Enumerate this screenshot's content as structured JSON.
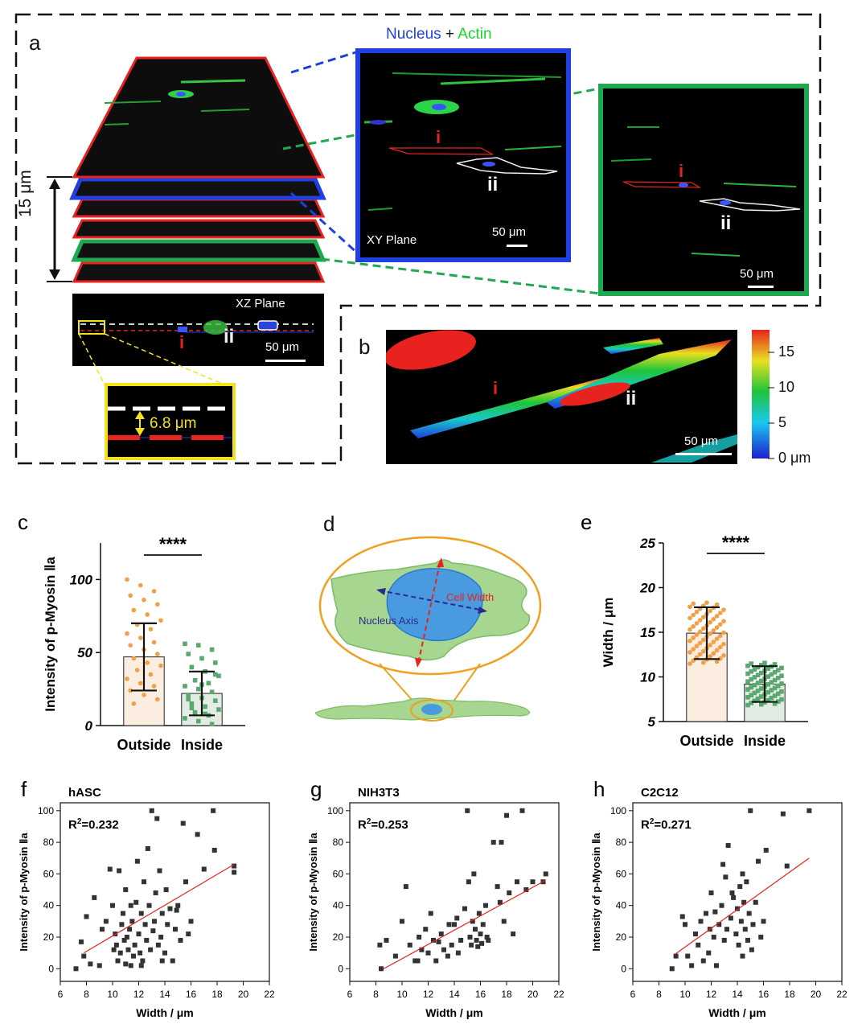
{
  "figure": {
    "panel_a": {
      "letter": "a",
      "title_nucleus": "Nucleus",
      "title_plus": " + ",
      "title_actin": "Actin",
      "stack_height_label": "15 μm",
      "xy_plane_label": "XY Plane",
      "xy_scale": "50 μm",
      "green_scale": "50 μm",
      "xz_plane_label": "XZ Plane",
      "xz_scale": "50 μm",
      "zoom_distance": "6.8 μm",
      "cell_i": "i",
      "cell_ii": "ii",
      "colors": {
        "red": "#e8221f",
        "blue": "#1f3fe0",
        "green": "#1ea84f",
        "yellow": "#f2e21c"
      }
    },
    "panel_b": {
      "letter": "b",
      "scale": "50 μm",
      "cell_i": "i",
      "cell_ii": "ii",
      "colorbar_ticks": [
        "15",
        "10",
        "5",
        "0 μm"
      ]
    },
    "panel_d": {
      "letter": "d",
      "cell_width_label": "Cell Width",
      "nucleus_axis_label": "Nucleus Axis"
    }
  },
  "chart_data": [
    {
      "id": "c",
      "letter": "c",
      "type": "bar",
      "ylabel": "Intensity of p-Myosin Ⅱa",
      "categories": [
        "Outside",
        "Inside"
      ],
      "values": [
        47,
        22
      ],
      "sd": [
        23,
        15
      ],
      "ylim": [
        0,
        125
      ],
      "yticks": [
        "0",
        "50",
        "100"
      ],
      "significance": "****",
      "scatter_outside": [
        100,
        96,
        92,
        89,
        86,
        83,
        79,
        76,
        72,
        69,
        66,
        63,
        60,
        57,
        55,
        52,
        49,
        46,
        43,
        41,
        38,
        35,
        32,
        29,
        27,
        24,
        21,
        18,
        15
      ],
      "scatter_inside": [
        56,
        55,
        52,
        49,
        46,
        43,
        40,
        37,
        34,
        31,
        29,
        27,
        25,
        23,
        21,
        19,
        17,
        15,
        13,
        11,
        9,
        7,
        5,
        3,
        1,
        18,
        28,
        35,
        12,
        8
      ]
    },
    {
      "id": "e",
      "letter": "e",
      "type": "bar",
      "ylabel": "Width / μm",
      "categories": [
        "Outside",
        "Inside"
      ],
      "values": [
        14.9,
        9.2
      ],
      "sd": [
        2.9,
        2.0
      ],
      "ylim": [
        5,
        25
      ],
      "yticks": [
        "5",
        "10",
        "15",
        "20",
        "25"
      ],
      "significance": "****"
    },
    {
      "id": "f",
      "letter": "f",
      "type": "scatter",
      "title": "hASC",
      "r2": "0.232",
      "xlabel": "Width / μm",
      "ylabel": "Intensity of p-Myosin Ⅱa",
      "xlim": [
        6,
        22
      ],
      "ylim": [
        -8,
        105
      ],
      "xticks": [
        "6",
        "8",
        "10",
        "12",
        "14",
        "16",
        "18",
        "20",
        "22"
      ],
      "yticks": [
        "0",
        "20",
        "40",
        "60",
        "80",
        "100"
      ],
      "fit": [
        [
          7.8,
          10
        ],
        [
          19.3,
          66
        ]
      ],
      "points": [
        [
          7.2,
          0
        ],
        [
          7.6,
          17
        ],
        [
          7.8,
          8
        ],
        [
          8.0,
          33
        ],
        [
          8.3,
          3
        ],
        [
          8.6,
          45
        ],
        [
          9.2,
          25
        ],
        [
          9.5,
          30
        ],
        [
          9.8,
          63
        ],
        [
          10.0,
          40
        ],
        [
          10.2,
          22
        ],
        [
          10.3,
          15
        ],
        [
          10.4,
          5
        ],
        [
          10.5,
          62
        ],
        [
          10.6,
          10
        ],
        [
          10.7,
          28
        ],
        [
          10.8,
          35
        ],
        [
          10.9,
          18
        ],
        [
          11.0,
          3
        ],
        [
          11.0,
          50
        ],
        [
          11.1,
          20
        ],
        [
          11.2,
          12
        ],
        [
          11.3,
          25
        ],
        [
          11.4,
          2
        ],
        [
          11.5,
          30
        ],
        [
          11.6,
          8
        ],
        [
          11.7,
          15
        ],
        [
          11.8,
          42
        ],
        [
          11.9,
          68
        ],
        [
          12.0,
          22
        ],
        [
          12.1,
          10
        ],
        [
          12.2,
          35
        ],
        [
          12.3,
          5
        ],
        [
          12.4,
          55
        ],
        [
          12.5,
          28
        ],
        [
          12.6,
          18
        ],
        [
          12.7,
          76
        ],
        [
          12.8,
          40
        ],
        [
          12.9,
          12
        ],
        [
          13.0,
          100
        ],
        [
          13.1,
          24
        ],
        [
          13.2,
          30
        ],
        [
          13.3,
          48
        ],
        [
          13.4,
          95
        ],
        [
          13.5,
          15
        ],
        [
          13.6,
          62
        ],
        [
          13.7,
          20
        ],
        [
          13.8,
          35
        ],
        [
          14.0,
          10
        ],
        [
          14.1,
          50
        ],
        [
          14.2,
          28
        ],
        [
          14.4,
          38
        ],
        [
          14.6,
          5
        ],
        [
          14.8,
          25
        ],
        [
          15.0,
          40
        ],
        [
          15.2,
          18
        ],
        [
          15.4,
          92
        ],
        [
          15.6,
          55
        ],
        [
          15.8,
          22
        ],
        [
          16.0,
          30
        ],
        [
          16.5,
          85
        ],
        [
          17.0,
          63
        ],
        [
          17.7,
          100
        ],
        [
          17.8,
          75
        ],
        [
          19.3,
          61
        ],
        [
          19.3,
          65
        ],
        [
          9.0,
          2
        ],
        [
          10.1,
          12
        ],
        [
          11.4,
          40
        ],
        [
          12.2,
          2
        ],
        [
          13.8,
          5
        ],
        [
          14.9,
          37
        ]
      ]
    },
    {
      "id": "g",
      "letter": "g",
      "type": "scatter",
      "title": "NIH3T3",
      "r2": "0.253",
      "xlabel": "Width / μm",
      "ylabel": "Intensity of p-Myosin Ⅱa",
      "xlim": [
        6,
        22
      ],
      "ylim": [
        -8,
        105
      ],
      "xticks": [
        "6",
        "8",
        "10",
        "12",
        "14",
        "16",
        "18",
        "20",
        "22"
      ],
      "yticks": [
        "0",
        "20",
        "40",
        "60",
        "80",
        "100"
      ],
      "fit": [
        [
          8.6,
          0
        ],
        [
          21.0,
          56
        ]
      ],
      "points": [
        [
          8.3,
          15
        ],
        [
          8.4,
          0
        ],
        [
          8.8,
          18
        ],
        [
          9.5,
          8
        ],
        [
          10.0,
          30
        ],
        [
          10.3,
          52
        ],
        [
          10.6,
          15
        ],
        [
          11.0,
          5
        ],
        [
          11.3,
          20
        ],
        [
          11.5,
          12
        ],
        [
          11.8,
          25
        ],
        [
          12.0,
          10
        ],
        [
          12.2,
          35
        ],
        [
          12.4,
          18
        ],
        [
          12.6,
          5
        ],
        [
          13.0,
          22
        ],
        [
          13.2,
          12
        ],
        [
          13.5,
          8
        ],
        [
          13.8,
          15
        ],
        [
          14.0,
          28
        ],
        [
          14.2,
          32
        ],
        [
          14.5,
          18
        ],
        [
          14.8,
          38
        ],
        [
          15.0,
          100
        ],
        [
          15.1,
          55
        ],
        [
          15.2,
          20
        ],
        [
          15.3,
          15
        ],
        [
          15.4,
          30
        ],
        [
          15.5,
          60
        ],
        [
          15.6,
          25
        ],
        [
          15.7,
          18
        ],
        [
          15.8,
          14
        ],
        [
          15.9,
          35
        ],
        [
          16.0,
          22
        ],
        [
          16.1,
          16
        ],
        [
          16.2,
          28
        ],
        [
          16.4,
          40
        ],
        [
          16.6,
          18
        ],
        [
          17.0,
          80
        ],
        [
          17.3,
          52
        ],
        [
          17.5,
          42
        ],
        [
          17.8,
          30
        ],
        [
          18.0,
          97
        ],
        [
          18.2,
          48
        ],
        [
          18.5,
          22
        ],
        [
          18.8,
          55
        ],
        [
          19.2,
          100
        ],
        [
          19.5,
          50
        ],
        [
          20.0,
          55
        ],
        [
          20.8,
          55
        ],
        [
          21.0,
          60
        ],
        [
          11.2,
          5
        ],
        [
          12.8,
          17
        ],
        [
          14.3,
          10
        ],
        [
          16.5,
          20
        ],
        [
          17.6,
          80
        ],
        [
          13.6,
          28
        ]
      ]
    },
    {
      "id": "h",
      "letter": "h",
      "type": "scatter",
      "title": "C2C12",
      "r2": "0.271",
      "xlabel": "Width / μm",
      "ylabel": "Intensity of p-Myosin Ⅱa",
      "xlim": [
        6,
        22
      ],
      "ylim": [
        -8,
        105
      ],
      "xticks": [
        "6",
        "8",
        "10",
        "12",
        "14",
        "16",
        "18",
        "20",
        "22"
      ],
      "yticks": [
        "0",
        "20",
        "40",
        "60",
        "80",
        "100"
      ],
      "fit": [
        [
          9.2,
          9
        ],
        [
          19.5,
          70
        ]
      ],
      "points": [
        [
          9.0,
          0
        ],
        [
          9.3,
          8
        ],
        [
          9.8,
          33
        ],
        [
          10.0,
          28
        ],
        [
          10.5,
          2
        ],
        [
          10.8,
          22
        ],
        [
          11.0,
          15
        ],
        [
          11.2,
          30
        ],
        [
          11.4,
          5
        ],
        [
          11.6,
          35
        ],
        [
          11.8,
          10
        ],
        [
          12.0,
          48
        ],
        [
          12.2,
          20
        ],
        [
          12.4,
          2
        ],
        [
          12.6,
          28
        ],
        [
          12.8,
          40
        ],
        [
          12.9,
          66
        ],
        [
          13.0,
          18
        ],
        [
          13.1,
          58
        ],
        [
          13.2,
          25
        ],
        [
          13.3,
          78
        ],
        [
          13.5,
          32
        ],
        [
          13.7,
          45
        ],
        [
          13.9,
          22
        ],
        [
          14.0,
          38
        ],
        [
          14.1,
          15
        ],
        [
          14.2,
          52
        ],
        [
          14.3,
          30
        ],
        [
          14.4,
          8
        ],
        [
          14.5,
          42
        ],
        [
          14.6,
          25
        ],
        [
          14.7,
          55
        ],
        [
          14.8,
          18
        ],
        [
          14.9,
          35
        ],
        [
          15.0,
          100
        ],
        [
          15.2,
          28
        ],
        [
          15.4,
          42
        ],
        [
          15.6,
          68
        ],
        [
          15.8,
          20
        ],
        [
          16.0,
          30
        ],
        [
          16.2,
          75
        ],
        [
          17.5,
          98
        ],
        [
          17.8,
          65
        ],
        [
          19.5,
          100
        ],
        [
          12.3,
          36
        ],
        [
          13.6,
          48
        ],
        [
          14.4,
          60
        ],
        [
          15.1,
          12
        ],
        [
          10.2,
          8
        ],
        [
          11.9,
          25
        ]
      ]
    }
  ]
}
